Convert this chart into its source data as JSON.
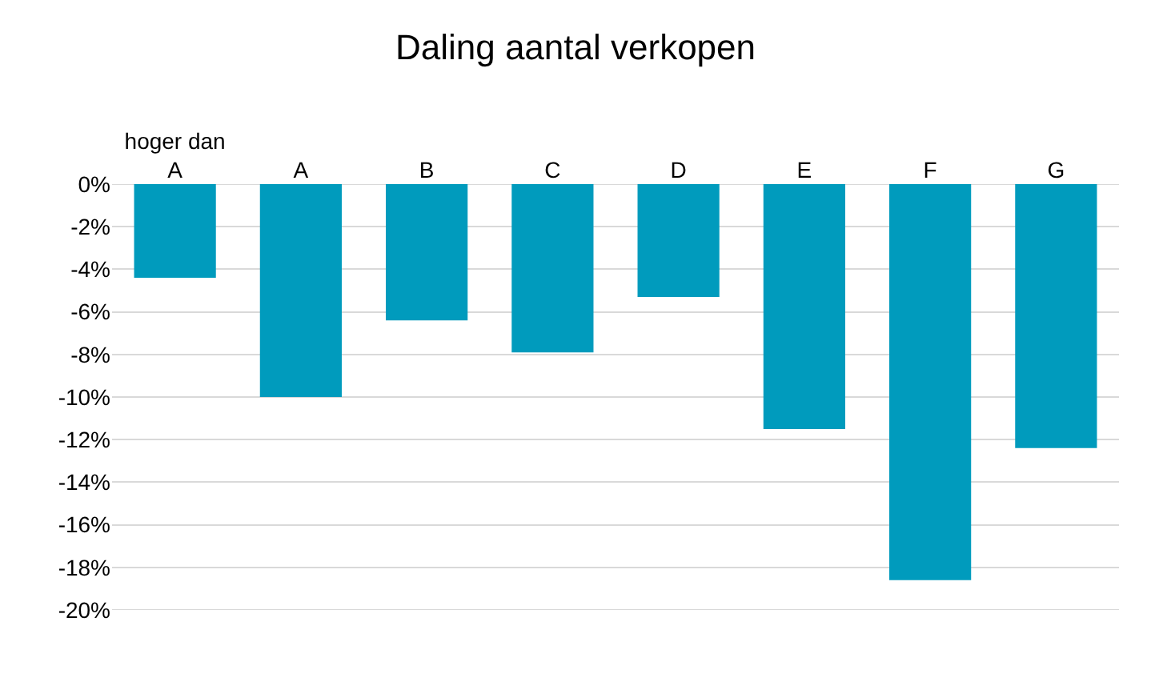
{
  "chart_data": {
    "type": "bar",
    "title": "Daling aantal verkopen",
    "categories": [
      "hoger dan\nA",
      "A",
      "B",
      "C",
      "D",
      "E",
      "F",
      "G"
    ],
    "values": [
      -4.4,
      -10.0,
      -6.4,
      -7.9,
      -5.3,
      -11.5,
      -18.6,
      -12.4
    ],
    "color": "#009bbd",
    "ylim": [
      -20,
      0
    ],
    "yticks": [
      {
        "value": 0,
        "label": "0%"
      },
      {
        "value": -2,
        "label": "-2%"
      },
      {
        "value": -4,
        "label": "-4%"
      },
      {
        "value": -6,
        "label": "-6%"
      },
      {
        "value": -8,
        "label": "-8%"
      },
      {
        "value": -10,
        "label": "-10%"
      },
      {
        "value": -12,
        "label": "-12%"
      },
      {
        "value": -14,
        "label": "-14%"
      },
      {
        "value": -16,
        "label": "-16%"
      },
      {
        "value": -18,
        "label": "-18%"
      },
      {
        "value": -20,
        "label": "-20%"
      }
    ],
    "grid": "y"
  }
}
